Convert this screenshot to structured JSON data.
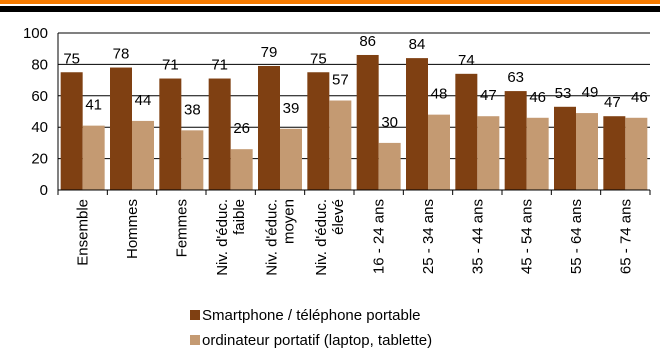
{
  "chart_data": {
    "type": "bar",
    "categories": [
      [
        "Ensemble"
      ],
      [
        "Hommes"
      ],
      [
        "Femmes"
      ],
      [
        "Niv. d'éduc.",
        "faible"
      ],
      [
        "Niv. d'éduc.",
        "moyen"
      ],
      [
        "Niv. d'éduc.",
        "élevé"
      ],
      [
        "16 - 24 ans"
      ],
      [
        "25 - 34 ans"
      ],
      [
        "35 - 44 ans"
      ],
      [
        "45 - 54 ans"
      ],
      [
        "55 - 64 ans"
      ],
      [
        "65 - 74 ans"
      ]
    ],
    "series": [
      {
        "name": "Smartphone / téléphone portable",
        "color": "#7f4012",
        "values": [
          75,
          78,
          71,
          71,
          79,
          75,
          86,
          84,
          74,
          63,
          53,
          47
        ]
      },
      {
        "name": "ordinateur portatif (laptop, tablette)",
        "color": "#c49a72",
        "values": [
          41,
          44,
          38,
          26,
          39,
          57,
          30,
          48,
          47,
          46,
          49,
          46
        ]
      }
    ],
    "ylim": [
      0,
      100
    ],
    "yticks": [
      0,
      20,
      40,
      60,
      80,
      100
    ],
    "grid": true,
    "legend_position": "bottom"
  }
}
